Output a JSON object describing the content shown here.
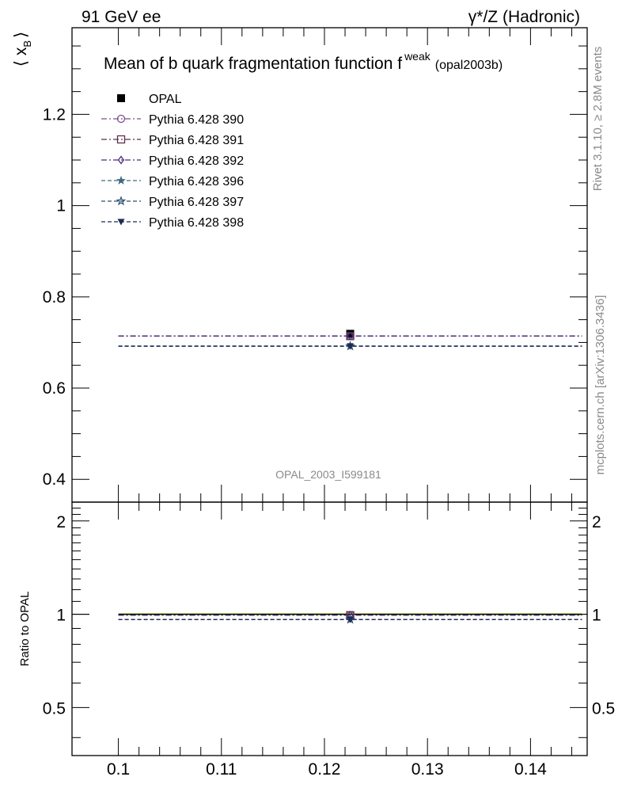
{
  "header": {
    "left": "91 GeV ee",
    "right": "γ*/Z (Hadronic)"
  },
  "side_labels": {
    "rivet": "Rivet 3.1.10, ≥ 2.8M events",
    "mcplots": "mcplots.cern.ch [arXiv:1306.3436]"
  },
  "chart_data": [
    {
      "type": "line",
      "panel": "main",
      "title": "Mean of b quark fragmentation function f",
      "title_sup": "weak",
      "title_suffix": "(opal2003b)",
      "analysis": "OPAL_2003_I599181",
      "ylabel": "⟨ x",
      "ylabel_sub": "B",
      "ylabel_close": "⟩",
      "xlabel": "",
      "xlim": [
        0.0955,
        0.1455
      ],
      "ylim": [
        0.35,
        1.39
      ],
      "x_ticks": [
        0.1,
        0.11,
        0.12,
        0.13,
        0.14
      ],
      "y_ticks": [
        0.4,
        0.6,
        0.8,
        1.0,
        1.2
      ],
      "y_tick_labels": [
        "0.4",
        "0.6",
        "0.8",
        "1",
        "1.2"
      ],
      "legend_position": "top-left",
      "series": [
        {
          "name": "OPAL",
          "color": "#000000",
          "marker": "square-filled",
          "dash": "none",
          "x": [
            0.1225
          ],
          "y": [
            0.719
          ],
          "line_x": [],
          "line_y": []
        },
        {
          "name": "Pythia 6.428 390",
          "color": "#7b4f8c",
          "marker": "circle-open",
          "dash": "dashdot",
          "x": [
            0.1225
          ],
          "y": [
            0.714
          ],
          "line_x": [
            0.1,
            0.145
          ],
          "line_y": [
            0.714,
            0.714
          ]
        },
        {
          "name": "Pythia 6.428 391",
          "color": "#5e2e4d",
          "marker": "square-open",
          "dash": "dashdot",
          "x": [
            0.1225
          ],
          "y": [
            0.714
          ],
          "line_x": [
            0.1,
            0.145
          ],
          "line_y": [
            0.714,
            0.714
          ]
        },
        {
          "name": "Pythia 6.428 392",
          "color": "#4b2b7e",
          "marker": "diamond-open",
          "dash": "dashdot",
          "x": [
            0.1225
          ],
          "y": [
            0.714
          ],
          "line_x": [
            0.1,
            0.145
          ],
          "line_y": [
            0.714,
            0.714
          ]
        },
        {
          "name": "Pythia 6.428 396",
          "color": "#3e6a82",
          "marker": "star-filled",
          "dash": "dashed",
          "x": [
            0.1225
          ],
          "y": [
            0.692
          ],
          "line_x": [
            0.1,
            0.145
          ],
          "line_y": [
            0.692,
            0.692
          ]
        },
        {
          "name": "Pythia 6.428 397",
          "color": "#2d4f6e",
          "marker": "star-open",
          "dash": "dashed",
          "x": [
            0.1225
          ],
          "y": [
            0.692
          ],
          "line_x": [
            0.1,
            0.145
          ],
          "line_y": [
            0.692,
            0.692
          ]
        },
        {
          "name": "Pythia 6.428 398",
          "color": "#1e2a55",
          "marker": "triangle-down-filled",
          "dash": "dashed",
          "x": [
            0.1225
          ],
          "y": [
            0.692
          ],
          "line_x": [
            0.1,
            0.145
          ],
          "line_y": [
            0.692,
            0.692
          ]
        }
      ]
    },
    {
      "type": "line",
      "panel": "ratio",
      "ylabel": "Ratio to OPAL",
      "xlim": [
        0.0955,
        0.1455
      ],
      "ylim": [
        0.35,
        2.3
      ],
      "y_scale": "log",
      "x_ticks": [
        0.1,
        0.11,
        0.12,
        0.13,
        0.14
      ],
      "x_tick_labels": [
        "0.1",
        "0.11",
        "0.12",
        "0.13",
        "0.14"
      ],
      "y_ticks": [
        0.5,
        1,
        2
      ],
      "y_tick_labels": [
        "0.5",
        "1",
        "2"
      ],
      "band": {
        "color": "#ccee66",
        "y_low": 0.992,
        "y_high": 1.008
      },
      "series": [
        {
          "name": "OPAL",
          "color": "#000000",
          "marker": "none",
          "dash": "none",
          "x": [],
          "y": [],
          "line_x": [
            0.1,
            0.145
          ],
          "line_y": [
            1.0,
            1.0
          ]
        },
        {
          "name": "Pythia 6.428 390",
          "color": "#7b4f8c",
          "marker": "circle-open",
          "dash": "dashdot",
          "x": [
            0.1225
          ],
          "y": [
            0.993
          ],
          "line_x": [
            0.1,
            0.145
          ],
          "line_y": [
            0.993,
            0.993
          ]
        },
        {
          "name": "Pythia 6.428 391",
          "color": "#5e2e4d",
          "marker": "square-open",
          "dash": "dashdot",
          "x": [
            0.1225
          ],
          "y": [
            0.993
          ],
          "line_x": [
            0.1,
            0.145
          ],
          "line_y": [
            0.993,
            0.993
          ]
        },
        {
          "name": "Pythia 6.428 392",
          "color": "#4b2b7e",
          "marker": "diamond-open",
          "dash": "dashdot",
          "x": [
            0.1225
          ],
          "y": [
            0.993
          ],
          "line_x": [
            0.1,
            0.145
          ],
          "line_y": [
            0.993,
            0.993
          ]
        },
        {
          "name": "Pythia 6.428 396",
          "color": "#3e6a82",
          "marker": "star-filled",
          "dash": "dashed",
          "x": [
            0.1225
          ],
          "y": [
            0.962
          ],
          "line_x": [
            0.1,
            0.145
          ],
          "line_y": [
            0.962,
            0.962
          ]
        },
        {
          "name": "Pythia 6.428 397",
          "color": "#2d4f6e",
          "marker": "star-open",
          "dash": "dashed",
          "x": [
            0.1225
          ],
          "y": [
            0.962
          ],
          "line_x": [
            0.1,
            0.145
          ],
          "line_y": [
            0.962,
            0.962
          ]
        },
        {
          "name": "Pythia 6.428 398",
          "color": "#1e2a55",
          "marker": "triangle-down-filled",
          "dash": "dashed",
          "x": [
            0.1225
          ],
          "y": [
            0.962
          ],
          "line_x": [
            0.1,
            0.145
          ],
          "line_y": [
            0.962,
            0.962
          ]
        }
      ]
    }
  ]
}
